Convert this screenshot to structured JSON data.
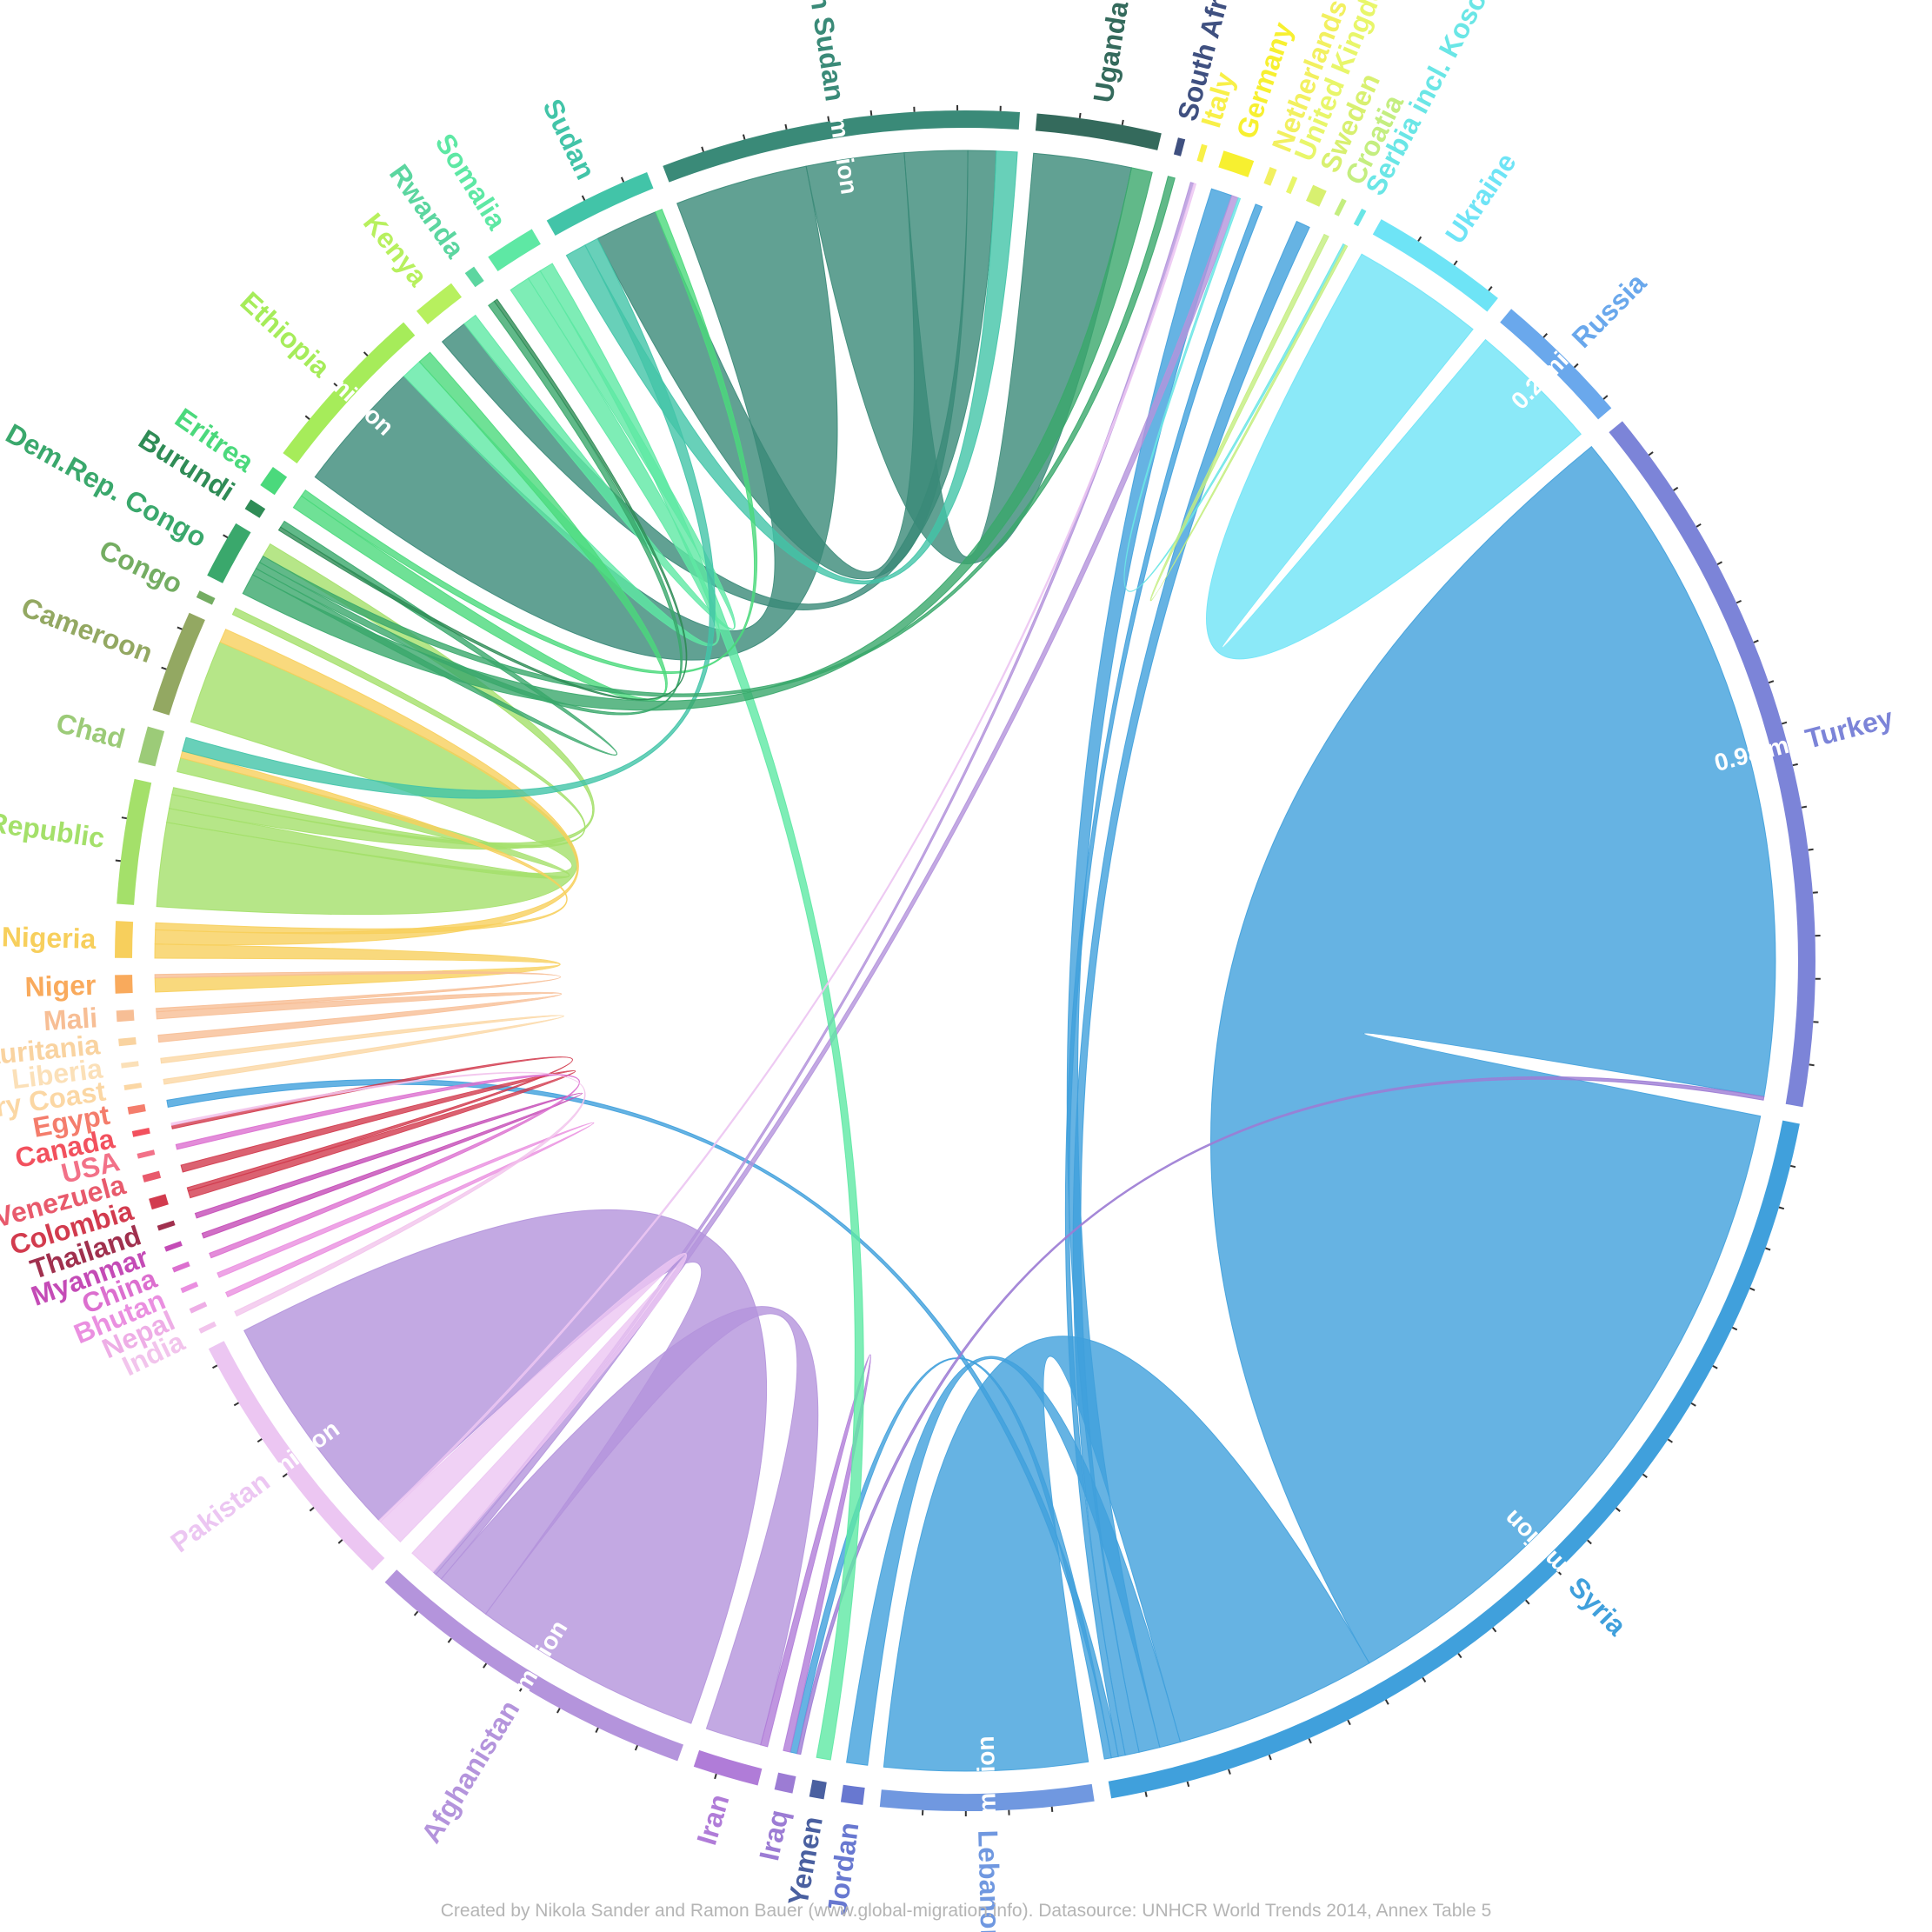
{
  "chart_data": {
    "type": "chord",
    "nodes": [
      {
        "name": "India",
        "color": "#f2c4ec"
      },
      {
        "name": "Nepal",
        "color": "#eeaee6"
      },
      {
        "name": "Bhutan",
        "color": "#ea8fe0"
      },
      {
        "name": "China",
        "color": "#dc6fcf"
      },
      {
        "name": "Myanmar",
        "color": "#c44bb6"
      },
      {
        "name": "Thailand",
        "color": "#a0304e"
      },
      {
        "name": "Colombia",
        "color": "#d23b4e"
      },
      {
        "name": "Venezuela",
        "color": "#e85a6c"
      },
      {
        "name": "USA",
        "color": "#f27188"
      },
      {
        "name": "Canada",
        "color": "#f2515e"
      },
      {
        "name": "Egypt",
        "color": "#f47d6c"
      },
      {
        "name": "Ivory Coast",
        "color": "#fbd7a4"
      },
      {
        "name": "Liberia",
        "color": "#fbe0b8"
      },
      {
        "name": "Mauritania",
        "color": "#f9d3a0"
      },
      {
        "name": "Mali",
        "color": "#f7be95"
      },
      {
        "name": "Niger",
        "color": "#f9aa5c"
      },
      {
        "name": "Nigeria",
        "color": "#f7cf5c"
      },
      {
        "name": "Central African Republic",
        "color": "#a4e06a"
      },
      {
        "name": "Chad",
        "color": "#9ccb78"
      },
      {
        "name": "Cameroon",
        "color": "#93a862"
      },
      {
        "name": "Congo",
        "color": "#74ad62"
      },
      {
        "name": "Dem.Rep. Congo",
        "color": "#3aa86c"
      },
      {
        "name": "Burundi",
        "color": "#2f8c56"
      },
      {
        "name": "Eritrea",
        "color": "#4bd97c"
      },
      {
        "name": "Ethiopia",
        "color": "#a6ec5a",
        "value_label": "0.2 million"
      },
      {
        "name": "Kenya",
        "color": "#b7f05e"
      },
      {
        "name": "Rwanda",
        "color": "#5cd6a0"
      },
      {
        "name": "Somalia",
        "color": "#5ee8a4"
      },
      {
        "name": "Sudan",
        "color": "#42c4a8"
      },
      {
        "name": "South Sudan",
        "color": "#3a8a78",
        "value_label": "0.52 million"
      },
      {
        "name": "Uganda",
        "color": "#346a5c"
      },
      {
        "name": "South Africa",
        "color": "#3f5080"
      },
      {
        "name": "Italy",
        "color": "#f8f048"
      },
      {
        "name": "Germany",
        "color": "#f7f030"
      },
      {
        "name": "Netherlands",
        "color": "#f2f060"
      },
      {
        "name": "United Kingdom",
        "color": "#e8f66a"
      },
      {
        "name": "Sweden",
        "color": "#d8f070"
      },
      {
        "name": "Croatia",
        "color": "#c4ee80"
      },
      {
        "name": "Serbia incl. Kosovo",
        "color": "#6ae6e6"
      },
      {
        "name": "Ukraine",
        "color": "#6ee4f6"
      },
      {
        "name": "Russia",
        "color": "#6aa8ec",
        "value_label": "0.2 million"
      },
      {
        "name": "Turkey",
        "color": "#7c84d8",
        "value_label": "0.98 million"
      },
      {
        "name": "Syria",
        "color": "#40a0dc",
        "value_label": "1.41 million"
      },
      {
        "name": "Lebanon",
        "color": "#7098e0",
        "value_label": "0.29 million"
      },
      {
        "name": "Jordan",
        "color": "#6878d0"
      },
      {
        "name": "Yemen",
        "color": "#4a60a0"
      },
      {
        "name": "Iraq",
        "color": "#9c7cd4"
      },
      {
        "name": "Iran",
        "color": "#b07cd8"
      },
      {
        "name": "Afghanistan",
        "color": "#b494dc",
        "value_label": "0.54 million"
      },
      {
        "name": "Pakistan",
        "color": "#ecc6f2",
        "value_label": "0.4 million"
      }
    ],
    "flows_millions": [
      {
        "from": "Syria",
        "to": "Turkey",
        "value": 0.98
      },
      {
        "from": "Syria",
        "to": "Lebanon",
        "value": 0.29
      },
      {
        "from": "Syria",
        "to": "Jordan",
        "value": 0.03
      },
      {
        "from": "Syria",
        "to": "Germany",
        "value": 0.03
      },
      {
        "from": "Syria",
        "to": "Sweden",
        "value": 0.02
      },
      {
        "from": "Syria",
        "to": "Netherlands",
        "value": 0.01
      },
      {
        "from": "Syria",
        "to": "Egypt",
        "value": 0.01
      },
      {
        "from": "Syria",
        "to": "Iraq",
        "value": 0.01
      },
      {
        "from": "Afghanistan",
        "to": "Pakistan",
        "value": 0.33
      },
      {
        "from": "Afghanistan",
        "to": "Iran",
        "value": 0.08
      },
      {
        "from": "Afghanistan",
        "to": "Germany",
        "value": 0.01
      },
      {
        "from": "Afghanistan",
        "to": "Italy",
        "value": 0.005
      },
      {
        "from": "Pakistan",
        "to": "Afghanistan",
        "value": 0.04
      },
      {
        "from": "Iraq",
        "to": "Turkey",
        "value": 0.005
      },
      {
        "from": "Iran",
        "to": "Iraq",
        "value": 0.01
      },
      {
        "from": "Ukraine",
        "to": "Russia",
        "value": 0.19
      },
      {
        "from": "South Sudan",
        "to": "Ethiopia",
        "value": 0.19
      },
      {
        "from": "South Sudan",
        "to": "Uganda",
        "value": 0.14
      },
      {
        "from": "South Sudan",
        "to": "Sudan",
        "value": 0.09
      },
      {
        "from": "South Sudan",
        "to": "Kenya",
        "value": 0.04
      },
      {
        "from": "Central African Republic",
        "to": "Cameroon",
        "value": 0.12
      },
      {
        "from": "Central African Republic",
        "to": "Chad",
        "value": 0.02
      },
      {
        "from": "Central African Republic",
        "to": "Dem.Rep. Congo",
        "value": 0.02
      },
      {
        "from": "Central African Republic",
        "to": "Congo",
        "value": 0.01
      },
      {
        "from": "Nigeria",
        "to": "Niger",
        "value": 0.02
      },
      {
        "from": "Nigeria",
        "to": "Cameroon",
        "value": 0.02
      },
      {
        "from": "Nigeria",
        "to": "Chad",
        "value": 0.01
      },
      {
        "from": "Mali",
        "to": "Mauritania",
        "value": 0.01
      },
      {
        "from": "Mali",
        "to": "Niger",
        "value": 0.005
      },
      {
        "from": "Ivory Coast",
        "to": "Liberia",
        "value": 0.005
      },
      {
        "from": "Colombia",
        "to": "Venezuela",
        "value": 0.01
      },
      {
        "from": "Colombia",
        "to": "Canada",
        "value": 0.005
      },
      {
        "from": "Somalia",
        "to": "Ethiopia",
        "value": 0.03
      },
      {
        "from": "Somalia",
        "to": "Kenya",
        "value": 0.02
      },
      {
        "from": "Somalia",
        "to": "Yemen",
        "value": 0.02
      },
      {
        "from": "Sudan",
        "to": "South Sudan",
        "value": 0.03
      },
      {
        "from": "Sudan",
        "to": "Chad",
        "value": 0.02
      },
      {
        "from": "Eritrea",
        "to": "Ethiopia",
        "value": 0.02
      },
      {
        "from": "Eritrea",
        "to": "Sudan",
        "value": 0.01
      },
      {
        "from": "Dem.Rep. Congo",
        "to": "Uganda",
        "value": 0.03
      },
      {
        "from": "Dem.Rep. Congo",
        "to": "Burundi",
        "value": 0.01
      },
      {
        "from": "Dem.Rep. Congo",
        "to": "Rwanda",
        "value": 0.01
      },
      {
        "from": "Dem.Rep. Congo",
        "to": "South Africa",
        "value": 0.01
      },
      {
        "from": "Burundi",
        "to": "Rwanda",
        "value": 0.005
      },
      {
        "from": "Myanmar",
        "to": "Thailand",
        "value": 0.005
      },
      {
        "from": "China",
        "to": "USA",
        "value": 0.005
      },
      {
        "from": "Bhutan",
        "to": "Nepal",
        "value": 0.005
      },
      {
        "from": "India",
        "to": "Canada",
        "value": 0.003
      },
      {
        "from": "Pakistan",
        "to": "Italy",
        "value": 0.003
      },
      {
        "from": "Serbia incl. Kosovo",
        "to": "Germany",
        "value": 0.003
      },
      {
        "from": "Croatia",
        "to": "Serbia incl. Kosovo",
        "value": 0.003
      }
    ]
  },
  "footer": {
    "credit": "Created by Nikola Sander and Ramon Bauer (www.global-migration.info). Datasource: UNHCR World Trends 2014, Annex Table 5"
  }
}
